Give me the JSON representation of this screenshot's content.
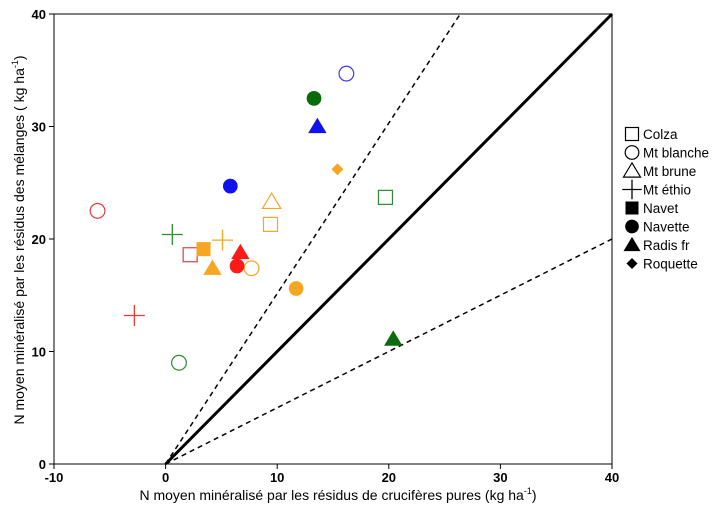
{
  "chart_data": {
    "type": "scatter",
    "title": "",
    "xlabel": "N moyen minéralisé par les résidus de crucifères pures (kg ha",
    "xlabel_sup": "-1",
    "xlabel_end": ")",
    "ylabel": "N moyen minéralisé par les résidus des mélanges  ( kg ha",
    "ylabel_sup": "-1",
    "ylabel_end": ")",
    "xlim": [
      -10,
      40
    ],
    "ylim": [
      0,
      40
    ],
    "xticks": [
      -10,
      0,
      10,
      20,
      30,
      40
    ],
    "yticks": [
      0,
      10,
      20,
      30,
      40
    ],
    "grid": false,
    "legend_position": "right",
    "legend": [
      {
        "name": "Colza",
        "marker": "square",
        "filled": false
      },
      {
        "name": "Mt blanche",
        "marker": "circle",
        "filled": false
      },
      {
        "name": "Mt brune",
        "marker": "triangle",
        "filled": false
      },
      {
        "name": "Mt éthio",
        "marker": "plus",
        "filled": false
      },
      {
        "name": "Navet",
        "marker": "square",
        "filled": true
      },
      {
        "name": "Navette",
        "marker": "circle",
        "filled": true
      },
      {
        "name": "Radis fr",
        "marker": "triangle",
        "filled": true
      },
      {
        "name": "Roquette",
        "marker": "diamond",
        "filled": true
      }
    ],
    "reference_lines": [
      {
        "style": "solid",
        "from": [
          0,
          0
        ],
        "to": [
          40,
          40
        ]
      },
      {
        "style": "dashed",
        "from": [
          0,
          0
        ],
        "to": [
          26.4,
          40
        ]
      },
      {
        "style": "dashed",
        "from": [
          0,
          0
        ],
        "to": [
          40,
          20
        ]
      }
    ],
    "points": [
      {
        "series": "Colza",
        "color": "#e83a3a",
        "x": 2.2,
        "y": 18.6
      },
      {
        "series": "Colza",
        "color": "#f5a623",
        "x": 9.4,
        "y": 21.3
      },
      {
        "series": "Colza",
        "color": "#2e8b2e",
        "x": 19.7,
        "y": 23.7
      },
      {
        "series": "Mt blanche",
        "color": "#e83a3a",
        "x": -6.1,
        "y": 22.5
      },
      {
        "series": "Mt blanche",
        "color": "#3a3ae8",
        "x": 16.2,
        "y": 34.7
      },
      {
        "series": "Mt blanche",
        "color": "#f5a623",
        "x": 7.7,
        "y": 17.4
      },
      {
        "series": "Mt blanche",
        "color": "#2e8b2e",
        "x": 1.2,
        "y": 9.0
      },
      {
        "series": "Mt brune",
        "color": "#f5a623",
        "x": 9.5,
        "y": 23.3
      },
      {
        "series": "Mt éthio",
        "color": "#e83a3a",
        "x": -2.8,
        "y": 13.2
      },
      {
        "series": "Mt éthio",
        "color": "#2e8b2e",
        "x": 0.6,
        "y": 20.4
      },
      {
        "series": "Mt éthio",
        "color": "#f5a623",
        "x": 5.1,
        "y": 19.9
      },
      {
        "series": "Navet",
        "color": "#f5a623",
        "x": 3.4,
        "y": 19.1
      },
      {
        "series": "Navette",
        "color": "#0a6b0a",
        "x": 13.3,
        "y": 32.5
      },
      {
        "series": "Navette",
        "color": "#1010f0",
        "x": 5.8,
        "y": 24.7
      },
      {
        "series": "Navette",
        "color": "#ff1a1a",
        "x": 6.4,
        "y": 17.6
      },
      {
        "series": "Navette",
        "color": "#f5a623",
        "x": 11.7,
        "y": 15.6
      },
      {
        "series": "Radis fr",
        "color": "#1010f0",
        "x": 13.6,
        "y": 30.0
      },
      {
        "series": "Radis fr",
        "color": "#ff1a1a",
        "x": 6.7,
        "y": 18.8
      },
      {
        "series": "Radis fr",
        "color": "#f5a623",
        "x": 4.2,
        "y": 17.4
      },
      {
        "series": "Radis fr",
        "color": "#0a6b0a",
        "x": 20.4,
        "y": 11.1
      },
      {
        "series": "Roquette",
        "color": "#f5a623",
        "x": 15.4,
        "y": 26.2
      }
    ]
  }
}
